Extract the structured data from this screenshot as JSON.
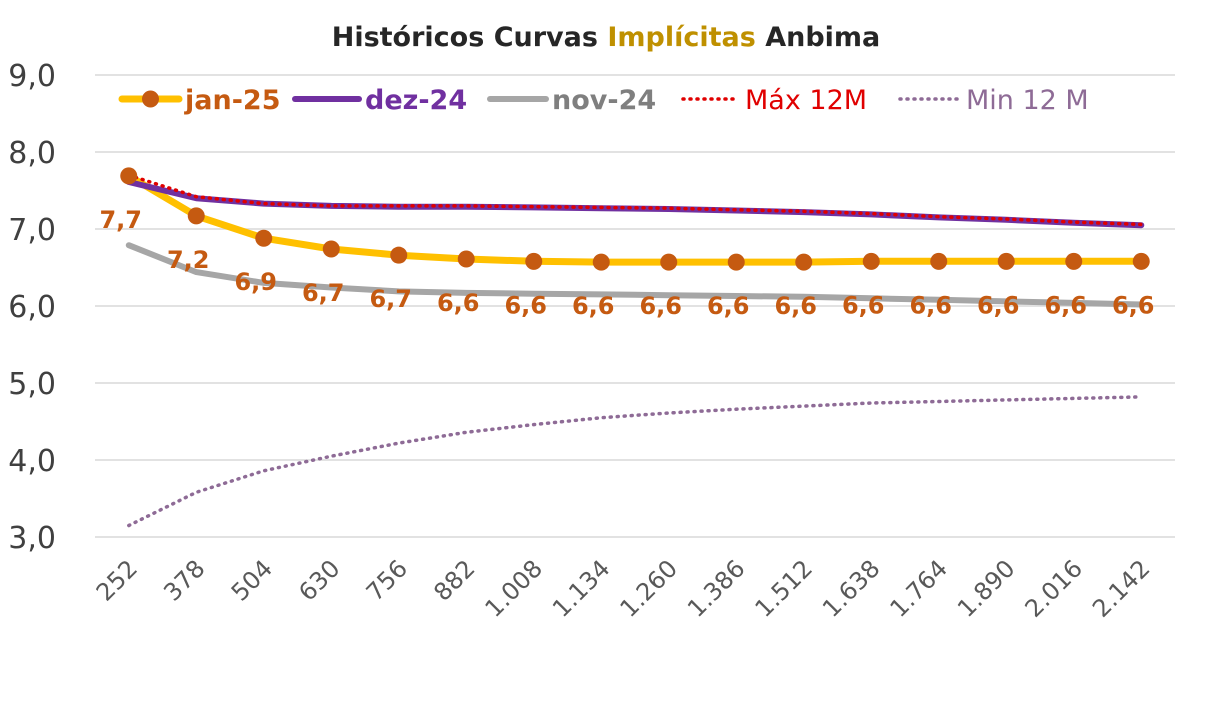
{
  "chart_data": {
    "type": "line",
    "title": "Históricos Curvas Implícitas Anbima",
    "title_parts": [
      {
        "text": "Históricos Curvas ",
        "color": "#262626"
      },
      {
        "text": "Implícitas",
        "color": "#BF9000"
      },
      {
        "text": " Anbima",
        "color": "#262626"
      }
    ],
    "categories": [
      "252",
      "378",
      "504",
      "630",
      "756",
      "882",
      "1.008",
      "1.134",
      "1.260",
      "1.386",
      "1.512",
      "1.638",
      "1.764",
      "1.890",
      "2.016",
      "2.142"
    ],
    "ylim": [
      3.0,
      9.0
    ],
    "yticks": [
      "3,0",
      "4,0",
      "5,0",
      "6,0",
      "7,0",
      "8,0",
      "9,0"
    ],
    "ytick_values": [
      3,
      4,
      5,
      6,
      7,
      8,
      9
    ],
    "grid": true,
    "legend_position": "top",
    "series": [
      {
        "name": "Min 12 M",
        "color": "#8E6B96",
        "style": "dotted",
        "values": [
          3.15,
          3.58,
          3.86,
          4.05,
          4.22,
          4.36,
          4.46,
          4.55,
          4.61,
          4.66,
          4.7,
          4.74,
          4.76,
          4.78,
          4.8,
          4.82
        ]
      },
      {
        "name": "nov-24",
        "color": "#A6A6A6",
        "style": "solid",
        "values": [
          6.79,
          6.44,
          6.3,
          6.24,
          6.19,
          6.17,
          6.16,
          6.15,
          6.14,
          6.13,
          6.12,
          6.1,
          6.08,
          6.06,
          6.04,
          6.02
        ]
      },
      {
        "name": "jan-25",
        "color": "#FFC000",
        "style": "solid-markers",
        "marker_color": "#C55A11",
        "values": [
          7.69,
          7.17,
          6.88,
          6.74,
          6.66,
          6.61,
          6.58,
          6.57,
          6.57,
          6.57,
          6.57,
          6.58,
          6.58,
          6.58,
          6.58,
          6.58
        ],
        "labels": [
          "7,7",
          "7,2",
          "6,9",
          "6,7",
          "6,7",
          "6,6",
          "6,6",
          "6,6",
          "6,6",
          "6,6",
          "6,6",
          "6,6",
          "6,6",
          "6,6",
          "6,6",
          "6,6"
        ],
        "label_color": "#C55A11"
      },
      {
        "name": "dez-24",
        "color": "#7030A0",
        "style": "solid",
        "values": [
          7.61,
          7.4,
          7.33,
          7.3,
          7.29,
          7.29,
          7.28,
          7.27,
          7.26,
          7.24,
          7.22,
          7.19,
          7.15,
          7.12,
          7.08,
          7.05
        ]
      },
      {
        "name": "Máx 12M",
        "color": "#E00000",
        "style": "dotted",
        "values": [
          7.7,
          7.42,
          7.33,
          7.3,
          7.3,
          7.3,
          7.29,
          7.28,
          7.27,
          7.25,
          7.23,
          7.2,
          7.16,
          7.13,
          7.09,
          7.06
        ]
      }
    ],
    "legend": [
      {
        "name": "jan-25",
        "text_color": "#C55A11",
        "bold": true
      },
      {
        "name": "dez-24",
        "text_color": "#7030A0",
        "bold": true
      },
      {
        "name": "nov-24",
        "text_color": "#7F7F7F",
        "bold": true
      },
      {
        "name": "Máx 12M",
        "text_color": "#E00000",
        "bold": false
      },
      {
        "name": "Min 12 M",
        "text_color": "#8E6B96",
        "bold": false
      }
    ]
  }
}
